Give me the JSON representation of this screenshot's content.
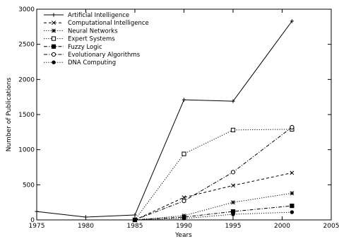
{
  "chart_data": {
    "type": "line",
    "xlabel": "Years",
    "ylabel": "Number of Publications",
    "xlim": [
      1975,
      2005
    ],
    "ylim": [
      0,
      3000
    ],
    "x_ticks": [
      1975,
      1980,
      1985,
      1990,
      1995,
      2000,
      2005
    ],
    "y_ticks": [
      0,
      500,
      1000,
      1500,
      2000,
      2500,
      3000
    ],
    "x_tick_labels": [
      "1975",
      "1980",
      "1985",
      "1990",
      "1995",
      "2000",
      "2005"
    ],
    "y_tick_labels": [
      "0",
      "500",
      "1000",
      "1500",
      "2000",
      "2500",
      "3000"
    ],
    "grid": false,
    "legend_position": "top-left",
    "series": [
      {
        "name": "Artificial Intelligence",
        "marker": "plus",
        "dash": "solid",
        "points": [
          [
            1975,
            120
          ],
          [
            1980,
            40
          ],
          [
            1985,
            70
          ],
          [
            1990,
            1710
          ],
          [
            1995,
            1690
          ],
          [
            2001,
            2830
          ]
        ]
      },
      {
        "name": "Computational Intelligence",
        "marker": "cross",
        "dash": "dashed",
        "points": [
          [
            1985,
            0
          ],
          [
            1990,
            320
          ],
          [
            1995,
            490
          ],
          [
            2001,
            670
          ]
        ]
      },
      {
        "name": "Neural Networks",
        "marker": "star",
        "dash": "dotted",
        "points": [
          [
            1985,
            0
          ],
          [
            1990,
            60
          ],
          [
            1995,
            250
          ],
          [
            2001,
            380
          ]
        ]
      },
      {
        "name": "Expert Systems",
        "marker": "square-open",
        "dash": "dotted",
        "points": [
          [
            1985,
            0
          ],
          [
            1990,
            940
          ],
          [
            1995,
            1280
          ],
          [
            2001,
            1290
          ]
        ]
      },
      {
        "name": "Fuzzy Logic",
        "marker": "square-filled",
        "dash": "dashdot",
        "points": [
          [
            1985,
            0
          ],
          [
            1990,
            40
          ],
          [
            1995,
            120
          ],
          [
            2001,
            200
          ]
        ]
      },
      {
        "name": "Evolutionary Algorithms",
        "marker": "circle-open",
        "dash": "dashdot",
        "points": [
          [
            1985,
            0
          ],
          [
            1990,
            270
          ],
          [
            1995,
            680
          ],
          [
            2001,
            1320
          ]
        ]
      },
      {
        "name": "DNA Computing",
        "marker": "circle-filled",
        "dash": "dotted",
        "points": [
          [
            1985,
            0
          ],
          [
            1990,
            20
          ],
          [
            1995,
            80
          ],
          [
            2001,
            110
          ]
        ]
      }
    ]
  }
}
